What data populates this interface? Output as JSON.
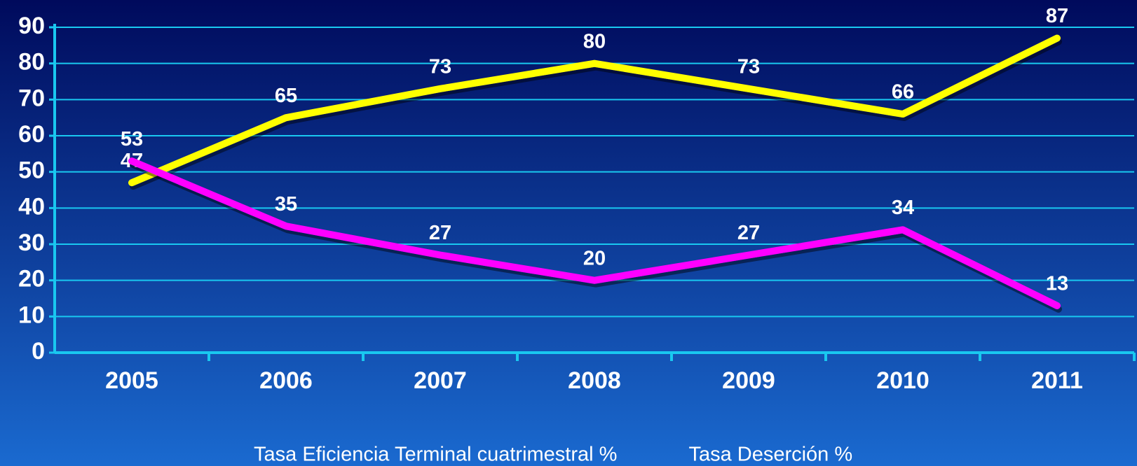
{
  "chart_data": {
    "type": "line",
    "categories": [
      "2005",
      "2006",
      "2007",
      "2008",
      "2009",
      "2010",
      "2011"
    ],
    "series": [
      {
        "name": "Tasa Eficiencia Terminal cuatrimestral %",
        "color": "#ffff00",
        "values": [
          47,
          65,
          73,
          80,
          73,
          66,
          87
        ]
      },
      {
        "name": "Tasa Deserción %",
        "color": "#ff00ff",
        "values": [
          53,
          35,
          27,
          20,
          27,
          34,
          13
        ]
      }
    ],
    "ylim": [
      0,
      90
    ],
    "yticks": [
      0,
      10,
      20,
      30,
      40,
      50,
      60,
      70,
      80,
      90
    ],
    "grid": true
  }
}
